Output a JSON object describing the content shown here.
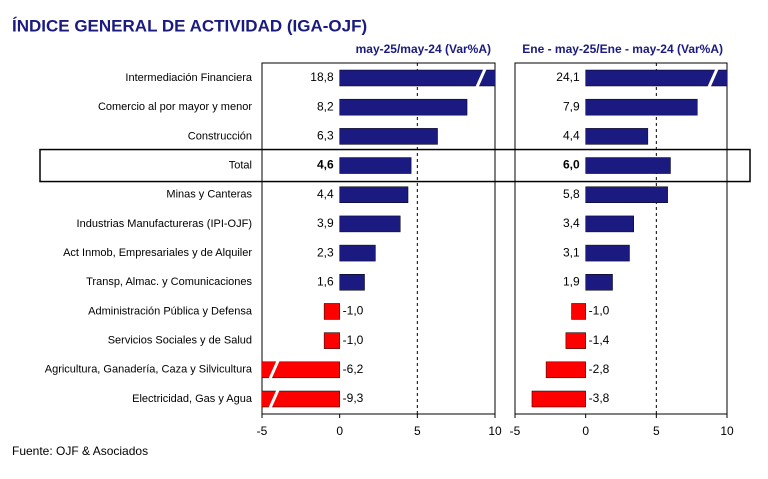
{
  "chart_data": {
    "type": "bar",
    "orientation": "horizontal",
    "title": "ÍNDICE GENERAL DE ACTIVIDAD (IGA-OJF)",
    "source": "Fuente: OJF & Asociados",
    "categories": [
      "Intermediación Financiera",
      "Comercio al por mayor y menor",
      "Construcción",
      "Total",
      "Minas y Canteras",
      "Industrias Manufactureras (IPI-OJF)",
      "Act Inmob, Empresariales y de Alquiler",
      "Transp, Almac. y Comunicaciones",
      "Administración Pública y Defensa",
      "Servicios Sociales y de Salud",
      "Agricultura, Ganadería, Caza y Silvicultura",
      "Electricidad, Gas y Agua"
    ],
    "highlight": "Total",
    "positive_color": "#1a1a80",
    "negative_color": "#ff0000",
    "panels": [
      {
        "subtitle": "may-25/may-24  (Var%A)",
        "values": [
          18.8,
          8.2,
          6.3,
          4.6,
          4.4,
          3.9,
          2.3,
          1.6,
          -1.0,
          -1.0,
          -6.2,
          -9.3
        ],
        "value_labels": [
          "18,8",
          "8,2",
          "6,3",
          "4,6",
          "4,4",
          "3,9",
          "2,3",
          "1,6",
          "-1,0",
          "-1,0",
          "-6,2",
          "-9,3"
        ],
        "xlim": [
          -5,
          10
        ],
        "xticks": [
          -5,
          0,
          5,
          10
        ]
      },
      {
        "subtitle": "Ene - may-25/Ene - may-24  (Var%A)",
        "values": [
          24.1,
          7.9,
          4.4,
          6.0,
          5.8,
          3.4,
          3.1,
          1.9,
          -1.0,
          -1.4,
          -2.8,
          -3.8
        ],
        "value_labels": [
          "24,1",
          "7,9",
          "4,4",
          "6,0",
          "5,8",
          "3,4",
          "3,1",
          "1,9",
          "-1,0",
          "-1,4",
          "-2,8",
          "-3,8"
        ],
        "xlim": [
          -5,
          10
        ],
        "xticks": [
          -5,
          0,
          5,
          10
        ]
      }
    ]
  }
}
